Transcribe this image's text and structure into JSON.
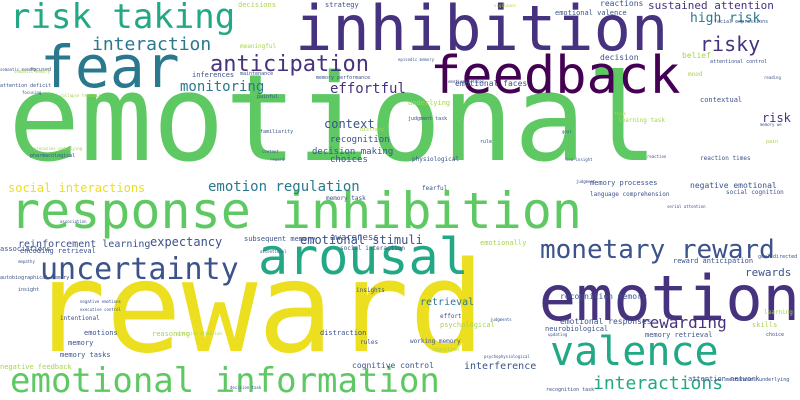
{
  "palette": {
    "background": "#ffffff",
    "yellow": "#ecdf1f",
    "lightgreen": "#5ec962",
    "green": "#22a884",
    "teal": "#2a788e",
    "blue": "#3b528b",
    "purple": "#46327e",
    "darkpurple": "#440154",
    "lime": "#a7d44b"
  },
  "words": [
    {
      "text": "emotional",
      "color": "lightgreen"
    },
    {
      "text": "reward",
      "color": "yellow"
    },
    {
      "text": "inhibition",
      "color": "purple"
    },
    {
      "text": "response inhibition",
      "color": "lightgreen"
    },
    {
      "text": "fear",
      "color": "teal"
    },
    {
      "text": "feedback",
      "color": "darkpurple"
    },
    {
      "text": "emotion",
      "color": "purple"
    },
    {
      "text": "valence",
      "color": "green"
    },
    {
      "text": "arousal",
      "color": "green"
    },
    {
      "text": "emotional information",
      "color": "lightgreen"
    },
    {
      "text": "risk taking",
      "color": "green"
    },
    {
      "text": "uncertainty",
      "color": "blue"
    },
    {
      "text": "monetary reward",
      "color": "blue"
    },
    {
      "text": "anticipation",
      "color": "purple"
    },
    {
      "text": "interaction",
      "color": "teal"
    },
    {
      "text": "risky",
      "color": "purple"
    },
    {
      "text": "interactions",
      "color": "green"
    },
    {
      "text": "rewarding",
      "color": "purple"
    },
    {
      "text": "monitoring",
      "color": "teal"
    },
    {
      "text": "effortful",
      "color": "purple"
    },
    {
      "text": "high risk",
      "color": "teal"
    },
    {
      "text": "sustained attention",
      "color": "purple"
    },
    {
      "text": "emotion regulation",
      "color": "teal"
    },
    {
      "text": "social interactions",
      "color": "yellow"
    },
    {
      "text": "expectancy",
      "color": "blue"
    },
    {
      "text": "emotional stimuli",
      "color": "blue"
    },
    {
      "text": "reinforcement learning",
      "color": "blue"
    },
    {
      "text": "context",
      "color": "blue"
    },
    {
      "text": "decision making",
      "color": "blue"
    },
    {
      "text": "choices",
      "color": "blue"
    },
    {
      "text": "recognition",
      "color": "blue"
    },
    {
      "text": "rewards",
      "color": "blue"
    },
    {
      "text": "risk",
      "color": "purple"
    },
    {
      "text": "awareness",
      "color": "blue"
    },
    {
      "text": "retrieval",
      "color": "teal"
    },
    {
      "text": "interference",
      "color": "blue"
    },
    {
      "text": "cognitive control",
      "color": "blue"
    },
    {
      "text": "emotional faces",
      "color": "blue"
    },
    {
      "text": "strategy",
      "color": "blue"
    },
    {
      "text": "reactions",
      "color": "blue"
    },
    {
      "text": "decision",
      "color": "blue"
    },
    {
      "text": "recognition memory",
      "color": "blue"
    },
    {
      "text": "emotional responses",
      "color": "blue"
    },
    {
      "text": "negative emotional",
      "color": "blue"
    },
    {
      "text": "memory processes",
      "color": "blue"
    },
    {
      "text": "subsequent memory",
      "color": "blue"
    },
    {
      "text": "emotional valence",
      "color": "blue"
    },
    {
      "text": "encoding retrieval",
      "color": "blue"
    },
    {
      "text": "memory tasks",
      "color": "blue"
    },
    {
      "text": "memory",
      "color": "blue"
    },
    {
      "text": "memory retrieval",
      "color": "blue"
    },
    {
      "text": "neurobiological",
      "color": "blue"
    },
    {
      "text": "attention network",
      "color": "blue"
    },
    {
      "text": "reward anticipation",
      "color": "blue"
    },
    {
      "text": "contextual",
      "color": "blue"
    },
    {
      "text": "reaction times",
      "color": "blue"
    },
    {
      "text": "decisions",
      "color": "lime"
    },
    {
      "text": "emotionally",
      "color": "lime"
    },
    {
      "text": "underlying",
      "color": "lime"
    },
    {
      "text": "psychological",
      "color": "lime"
    },
    {
      "text": "belief",
      "color": "lime"
    },
    {
      "text": "learning task",
      "color": "lime"
    },
    {
      "text": "skills",
      "color": "lime"
    },
    {
      "text": "learning",
      "color": "lime"
    },
    {
      "text": "negative feedback",
      "color": "lime"
    },
    {
      "text": "reasoning",
      "color": "lime"
    },
    {
      "text": "mood",
      "color": "lime"
    },
    {
      "text": "meaningful",
      "color": "lime"
    },
    {
      "text": "inferences",
      "color": "blue"
    },
    {
      "text": "distraction",
      "color": "blue"
    },
    {
      "text": "emotions",
      "color": "blue"
    },
    {
      "text": "intentional",
      "color": "blue"
    },
    {
      "text": "associations",
      "color": "blue"
    },
    {
      "text": "fearful",
      "color": "blue"
    },
    {
      "text": "effort",
      "color": "blue"
    },
    {
      "text": "insights",
      "color": "blue"
    },
    {
      "text": "rules",
      "color": "blue"
    },
    {
      "text": "working memory",
      "color": "blue"
    },
    {
      "text": "cognition",
      "color": "lime"
    },
    {
      "text": "social interaction",
      "color": "blue"
    },
    {
      "text": "memory task",
      "color": "blue"
    },
    {
      "text": "social cognition",
      "color": "blue"
    },
    {
      "text": "language comprehension",
      "color": "blue"
    },
    {
      "text": "goal directed",
      "color": "blue"
    },
    {
      "text": "focused",
      "color": "blue"
    },
    {
      "text": "attention deficit",
      "color": "blue"
    },
    {
      "text": "physiological",
      "color": "blue"
    },
    {
      "text": "judgment task",
      "color": "blue"
    },
    {
      "text": "memory performance",
      "color": "blue"
    },
    {
      "text": "attentional control",
      "color": "blue"
    },
    {
      "text": "facial expressions",
      "color": "blue"
    },
    {
      "text": "autobiographical memory",
      "color": "blue"
    },
    {
      "text": "mechanisms underlying",
      "color": "blue"
    },
    {
      "text": "recognition task",
      "color": "blue"
    },
    {
      "text": "distress",
      "color": "lime"
    },
    {
      "text": "pharmacological",
      "color": "blue"
    },
    {
      "text": "familiarity",
      "color": "blue"
    },
    {
      "text": "painful",
      "color": "blue"
    },
    {
      "text": "maintenance",
      "color": "blue"
    },
    {
      "text": "insight",
      "color": "blue"
    },
    {
      "text": "choice",
      "color": "blue"
    },
    {
      "text": "updating",
      "color": "blue"
    },
    {
      "text": "judgments",
      "color": "blue"
    },
    {
      "text": "empathy",
      "color": "blue"
    },
    {
      "text": "semantic memory",
      "color": "blue"
    },
    {
      "text": "association",
      "color": "blue"
    },
    {
      "text": "goal",
      "color": "blue"
    },
    {
      "text": "pain",
      "color": "lime"
    },
    {
      "text": "content",
      "color": "blue"
    },
    {
      "text": "rule",
      "color": "blue"
    },
    {
      "text": "focus",
      "color": "lime"
    },
    {
      "text": "reaction",
      "color": "blue"
    },
    {
      "text": "decision task",
      "color": "blue"
    },
    {
      "text": "processes underlying",
      "color": "lime"
    },
    {
      "text": "psychophysiological",
      "color": "blue"
    },
    {
      "text": "emotional faces",
      "color": "blue"
    },
    {
      "text": "negative emotions",
      "color": "blue"
    },
    {
      "text": "executive control",
      "color": "blue"
    },
    {
      "text": "reading",
      "color": "blue"
    },
    {
      "text": "reward",
      "color": "blue"
    },
    {
      "text": "new insight",
      "color": "blue"
    },
    {
      "text": "serial attention",
      "color": "blue"
    },
    {
      "text": "memory we",
      "color": "blue"
    },
    {
      "text": "judgment",
      "color": "blue"
    },
    {
      "text": "attentional",
      "color": "blue"
    },
    {
      "text": "collapse feedback",
      "color": "lime"
    },
    {
      "text": "focusing",
      "color": "blue"
    },
    {
      "text": "semantic memory",
      "color": "lime"
    },
    {
      "text": "vigilance",
      "color": "lime"
    },
    {
      "text": "episodic memory",
      "color": "blue"
    },
    {
      "text": "selective attention",
      "color": "lime"
    }
  ]
}
